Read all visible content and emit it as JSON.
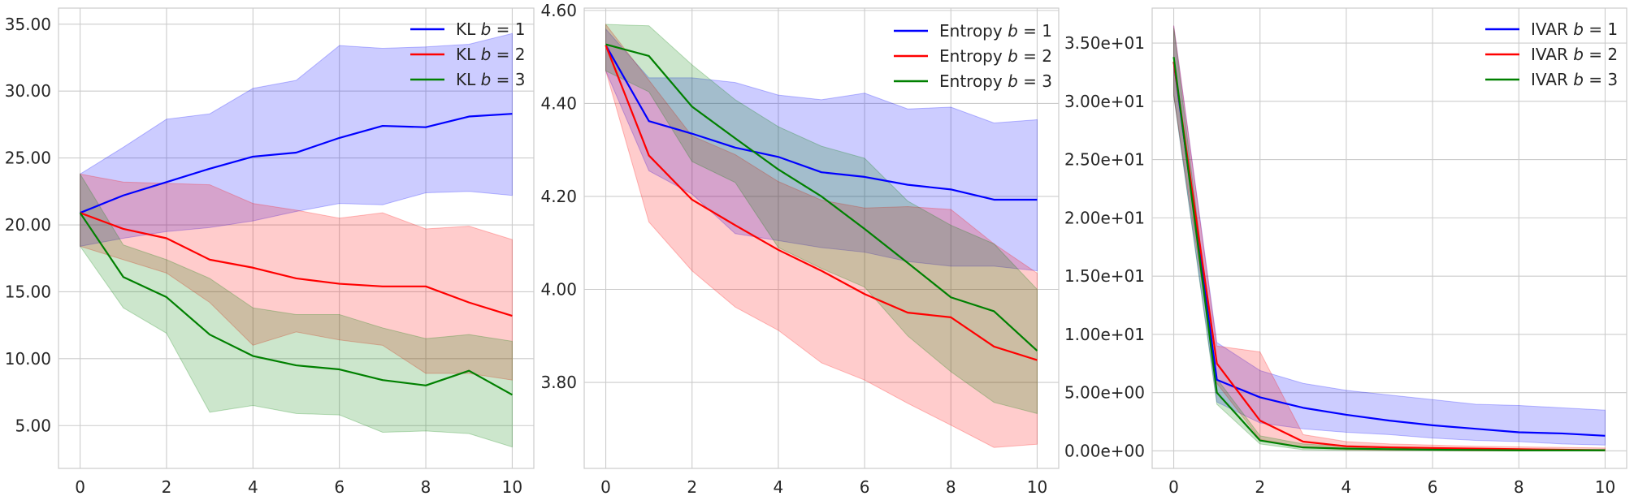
{
  "chart_data": [
    {
      "type": "line",
      "title": "",
      "xlabel": "",
      "ylabel": "",
      "xlim": [
        -0.5,
        10.5
      ],
      "ylim": [
        1.8,
        36.2
      ],
      "x_ticks": [
        0,
        2,
        4,
        6,
        8,
        10
      ],
      "x_tick_labels": [
        "0",
        "2",
        "4",
        "6",
        "8",
        "10"
      ],
      "y_ticks": [
        5,
        10,
        15,
        20,
        25,
        30,
        35
      ],
      "y_tick_labels": [
        "5.00",
        "10.00",
        "15.00",
        "20.00",
        "25.00",
        "30.00",
        "35.00"
      ],
      "legend_position": "top-right",
      "grid": true,
      "x": [
        0,
        1,
        2,
        3,
        4,
        5,
        6,
        7,
        8,
        9,
        10
      ],
      "series": [
        {
          "name": "KL",
          "b_label": "b = 1",
          "color": "#0000ff",
          "values": [
            20.9,
            22.2,
            23.2,
            24.2,
            25.1,
            25.4,
            26.5,
            27.4,
            27.3,
            28.1,
            28.3
          ],
          "lower": [
            18.4,
            19.0,
            19.5,
            19.8,
            20.3,
            21.0,
            21.6,
            21.5,
            22.4,
            22.5,
            22.2
          ],
          "upper": [
            23.8,
            25.8,
            27.9,
            28.3,
            30.2,
            30.8,
            33.4,
            33.2,
            33.3,
            33.5,
            34.3
          ]
        },
        {
          "name": "KL",
          "b_label": "b = 2",
          "color": "#ff0000",
          "values": [
            20.9,
            19.7,
            19.0,
            17.4,
            16.8,
            16.0,
            15.6,
            15.4,
            15.4,
            14.2,
            13.2
          ],
          "lower": [
            18.4,
            17.4,
            16.4,
            14.2,
            11.0,
            12.0,
            11.4,
            11.0,
            8.9,
            8.9,
            8.4
          ],
          "upper": [
            23.8,
            23.2,
            23.1,
            23.0,
            21.6,
            21.1,
            20.5,
            20.9,
            19.7,
            19.9,
            18.9
          ]
        },
        {
          "name": "KL",
          "b_label": "b = 3",
          "color": "#008000",
          "values": [
            20.9,
            16.1,
            14.6,
            11.8,
            10.2,
            9.5,
            9.2,
            8.4,
            8.0,
            9.1,
            7.3
          ],
          "lower": [
            18.4,
            13.8,
            11.9,
            6.0,
            6.5,
            5.9,
            5.8,
            4.5,
            4.6,
            4.4,
            3.4
          ],
          "upper": [
            23.8,
            18.5,
            17.4,
            16.0,
            13.8,
            13.3,
            13.3,
            12.3,
            11.5,
            11.8,
            11.3
          ]
        }
      ]
    },
    {
      "type": "line",
      "title": "",
      "xlabel": "",
      "ylabel": "",
      "xlim": [
        -0.5,
        10.5
      ],
      "ylim": [
        3.615,
        4.605
      ],
      "x_ticks": [
        0,
        2,
        4,
        6,
        8,
        10
      ],
      "x_tick_labels": [
        "0",
        "2",
        "4",
        "6",
        "8",
        "10"
      ],
      "y_ticks": [
        3.8,
        4.0,
        4.2,
        4.4,
        4.6
      ],
      "y_tick_labels": [
        "3.80",
        "4.00",
        "4.20",
        "4.40",
        "4.60"
      ],
      "legend_position": "top-right",
      "grid": true,
      "x": [
        0,
        1,
        2,
        3,
        4,
        5,
        6,
        7,
        8,
        9,
        10
      ],
      "series": [
        {
          "name": "Entropy",
          "b_label": "b = 1",
          "color": "#0000ff",
          "values": [
            4.525,
            4.362,
            4.335,
            4.305,
            4.285,
            4.252,
            4.242,
            4.225,
            4.215,
            4.193,
            4.193
          ],
          "lower": [
            4.47,
            4.255,
            4.205,
            4.12,
            4.105,
            4.09,
            4.08,
            4.06,
            4.05,
            4.05,
            4.04
          ],
          "upper": [
            4.56,
            4.455,
            4.455,
            4.445,
            4.418,
            4.408,
            4.422,
            4.388,
            4.392,
            4.358,
            4.365
          ]
        },
        {
          "name": "Entropy",
          "b_label": "b = 2",
          "color": "#ff0000",
          "values": [
            4.525,
            4.288,
            4.193,
            4.138,
            4.085,
            4.04,
            3.99,
            3.95,
            3.94,
            3.877,
            3.848
          ],
          "lower": [
            4.47,
            4.145,
            4.04,
            3.962,
            3.912,
            3.842,
            3.805,
            3.755,
            3.708,
            3.66,
            3.667
          ],
          "upper": [
            4.57,
            4.45,
            4.33,
            4.29,
            4.232,
            4.192,
            4.175,
            4.178,
            4.172,
            4.098,
            4.035
          ]
        },
        {
          "name": "Entropy",
          "b_label": "b = 3",
          "color": "#008000",
          "values": [
            4.527,
            4.502,
            4.393,
            4.325,
            4.258,
            4.2,
            4.13,
            4.057,
            3.983,
            3.953,
            3.868
          ],
          "lower": [
            4.47,
            4.425,
            4.275,
            4.23,
            4.09,
            4.045,
            4.005,
            3.9,
            3.823,
            3.757,
            3.733
          ],
          "upper": [
            4.57,
            4.567,
            4.483,
            4.408,
            4.35,
            4.308,
            4.282,
            4.19,
            4.138,
            4.098,
            4.0
          ]
        }
      ]
    },
    {
      "type": "line",
      "title": "",
      "xlabel": "",
      "ylabel": "",
      "xlim": [
        -0.5,
        10.5
      ],
      "ylim": [
        -1.5,
        38.0
      ],
      "x_ticks": [
        0,
        2,
        4,
        6,
        8,
        10
      ],
      "x_tick_labels": [
        "0",
        "2",
        "4",
        "6",
        "8",
        "10"
      ],
      "y_ticks": [
        0,
        5,
        10,
        15,
        20,
        25,
        30,
        35
      ],
      "y_tick_labels": [
        "0.00e+00",
        "5.00e+00",
        "1.00e+01",
        "1.50e+01",
        "2.00e+01",
        "2.50e+01",
        "3.00e+01",
        "3.50e+01"
      ],
      "legend_position": "top-right",
      "grid": true,
      "x": [
        0,
        1,
        2,
        3,
        4,
        5,
        6,
        7,
        8,
        9,
        10
      ],
      "series": [
        {
          "name": "IVAR",
          "b_label": "b = 1",
          "color": "#0000ff",
          "values": [
            33.4,
            6.1,
            4.6,
            3.7,
            3.1,
            2.6,
            2.2,
            1.9,
            1.6,
            1.5,
            1.3
          ],
          "lower": [
            30.5,
            4.2,
            2.4,
            1.9,
            1.6,
            1.4,
            1.1,
            0.9,
            0.8,
            0.6,
            0.5
          ],
          "upper": [
            36.5,
            9.3,
            6.9,
            5.8,
            5.2,
            4.8,
            4.4,
            4.0,
            3.9,
            3.7,
            3.5
          ]
        },
        {
          "name": "IVAR",
          "b_label": "b = 2",
          "color": "#ff0000",
          "values": [
            33.4,
            7.5,
            2.6,
            0.8,
            0.4,
            0.3,
            0.25,
            0.2,
            0.15,
            0.1,
            0.05
          ],
          "lower": [
            30.5,
            5.8,
            1.0,
            0.3,
            0.1,
            0.05,
            0.05,
            0.0,
            0.0,
            0.0,
            0.0
          ],
          "upper": [
            36.5,
            9.0,
            8.5,
            1.4,
            0.8,
            0.6,
            0.5,
            0.4,
            0.35,
            0.3,
            0.25
          ]
        },
        {
          "name": "IVAR",
          "b_label": "b = 3",
          "color": "#008000",
          "values": [
            33.8,
            5.0,
            0.9,
            0.3,
            0.2,
            0.15,
            0.1,
            0.08,
            0.05,
            0.05,
            0.05
          ],
          "lower": [
            30.5,
            4.0,
            0.6,
            0.1,
            0.05,
            0.03,
            0.02,
            0.01,
            0.0,
            0.0,
            0.0
          ],
          "upper": [
            36.3,
            6.2,
            1.3,
            0.6,
            0.4,
            0.3,
            0.25,
            0.2,
            0.18,
            0.15,
            0.15
          ]
        }
      ]
    }
  ]
}
